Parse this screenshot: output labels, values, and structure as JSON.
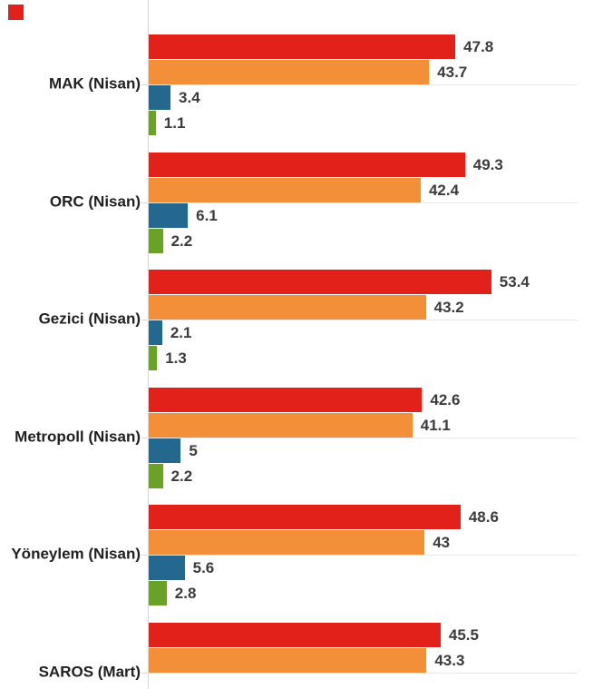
{
  "decoration": {
    "red_square_color": "#e3211b"
  },
  "chart_data": {
    "type": "bar",
    "orientation": "horizontal",
    "title": "",
    "xlabel": "",
    "ylabel": "",
    "xlim": [
      0,
      67
    ],
    "legend": "none",
    "grid": "light horizontal gridline at each category center, vertical baseline axis on left",
    "value_labels": true,
    "categories": [
      "MAK (Nisan)",
      "ORC (Nisan)",
      "Gezici (Nisan)",
      "Metropoll (Nisan)",
      "Yöneylem (Nisan)",
      "SAROS (Mart)"
    ],
    "series": [
      {
        "name": "red",
        "color": "#e3211b",
        "values": [
          47.8,
          49.3,
          53.4,
          42.6,
          48.6,
          45.5
        ]
      },
      {
        "name": "orange",
        "color": "#f48f39",
        "values": [
          43.7,
          42.4,
          43.2,
          41.1,
          43,
          43.3
        ]
      },
      {
        "name": "blue",
        "color": "#24678f",
        "values": [
          3.4,
          6.1,
          2.1,
          5,
          5.6,
          null
        ]
      },
      {
        "name": "green",
        "color": "#6aa127",
        "values": [
          1.1,
          2.2,
          1.3,
          2.2,
          2.8,
          null
        ]
      }
    ],
    "colors": {
      "value_label": "#3b3b3b",
      "category_label": "#202020",
      "gridline": "#e9e9e9",
      "axis_line": "#d6d6d6",
      "tick": "#d9d9d9"
    }
  }
}
